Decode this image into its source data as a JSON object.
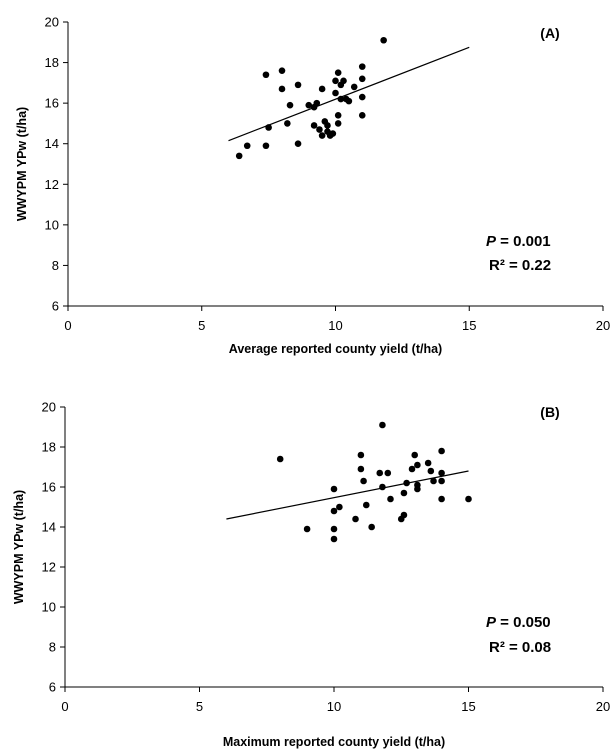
{
  "chart_data": [
    {
      "type": "scatter",
      "panel_label": "(A)",
      "xlabel": "Average reported county yield (t/ha)",
      "ylabel": "WWYPM YPw (t/ha)",
      "xlim": [
        0,
        20
      ],
      "ylim": [
        6,
        20
      ],
      "x_ticks": [
        "0",
        "5",
        "10",
        "15",
        "20"
      ],
      "y_ticks": [
        "6",
        "8",
        "10",
        "12",
        "14",
        "16",
        "18",
        "20"
      ],
      "grid": false,
      "trendline": {
        "x": [
          6,
          15
        ],
        "y": [
          14.15,
          18.75
        ]
      },
      "stats": {
        "p_symbol": "P",
        "p_text": " = 0.001",
        "r2_text": "R² = 0.22"
      },
      "points": [
        {
          "x": 6.4,
          "y": 13.4
        },
        {
          "x": 6.7,
          "y": 13.9
        },
        {
          "x": 7.4,
          "y": 13.9
        },
        {
          "x": 7.5,
          "y": 14.8
        },
        {
          "x": 7.4,
          "y": 17.4
        },
        {
          "x": 8.0,
          "y": 17.6
        },
        {
          "x": 8.0,
          "y": 16.7
        },
        {
          "x": 8.2,
          "y": 15.0
        },
        {
          "x": 8.3,
          "y": 15.9
        },
        {
          "x": 8.6,
          "y": 16.9
        },
        {
          "x": 8.6,
          "y": 14.0
        },
        {
          "x": 9.0,
          "y": 15.9
        },
        {
          "x": 9.2,
          "y": 15.8
        },
        {
          "x": 9.2,
          "y": 14.9
        },
        {
          "x": 9.3,
          "y": 16.0
        },
        {
          "x": 9.4,
          "y": 14.7
        },
        {
          "x": 9.5,
          "y": 14.4
        },
        {
          "x": 9.5,
          "y": 16.7
        },
        {
          "x": 9.6,
          "y": 15.1
        },
        {
          "x": 9.7,
          "y": 14.6
        },
        {
          "x": 9.7,
          "y": 14.9
        },
        {
          "x": 9.8,
          "y": 14.4
        },
        {
          "x": 9.9,
          "y": 14.5
        },
        {
          "x": 10.0,
          "y": 16.5
        },
        {
          "x": 10.0,
          "y": 17.1
        },
        {
          "x": 10.1,
          "y": 17.5
        },
        {
          "x": 10.1,
          "y": 15.0
        },
        {
          "x": 10.1,
          "y": 15.4
        },
        {
          "x": 10.2,
          "y": 16.9
        },
        {
          "x": 10.2,
          "y": 16.2
        },
        {
          "x": 10.3,
          "y": 17.1
        },
        {
          "x": 10.4,
          "y": 16.2
        },
        {
          "x": 10.5,
          "y": 16.1
        },
        {
          "x": 10.7,
          "y": 16.8
        },
        {
          "x": 11.0,
          "y": 17.8
        },
        {
          "x": 11.0,
          "y": 17.2
        },
        {
          "x": 11.0,
          "y": 16.3
        },
        {
          "x": 11.0,
          "y": 15.4
        },
        {
          "x": 11.8,
          "y": 19.1
        }
      ]
    },
    {
      "type": "scatter",
      "panel_label": "(B)",
      "xlabel": "Maximum reported county yield (t/ha)",
      "ylabel": "WWYPM YPw (t/ha)",
      "xlim": [
        0,
        20
      ],
      "ylim": [
        6,
        20
      ],
      "x_ticks": [
        "0",
        "5",
        "10",
        "15",
        "20"
      ],
      "y_ticks": [
        "6",
        "8",
        "10",
        "12",
        "14",
        "16",
        "18",
        "20"
      ],
      "grid": false,
      "trendline": {
        "x": [
          6,
          15
        ],
        "y": [
          14.4,
          16.8
        ]
      },
      "stats": {
        "p_symbol": "P",
        "p_text": " = 0.050",
        "r2_text": "R² = 0.08"
      },
      "points": [
        {
          "x": 8.0,
          "y": 17.4
        },
        {
          "x": 9.0,
          "y": 13.9
        },
        {
          "x": 10.0,
          "y": 15.9
        },
        {
          "x": 10.0,
          "y": 14.8
        },
        {
          "x": 10.0,
          "y": 13.9
        },
        {
          "x": 10.0,
          "y": 13.4
        },
        {
          "x": 10.2,
          "y": 15.0
        },
        {
          "x": 10.8,
          "y": 14.4
        },
        {
          "x": 11.0,
          "y": 17.6
        },
        {
          "x": 11.0,
          "y": 16.9
        },
        {
          "x": 11.1,
          "y": 16.3
        },
        {
          "x": 11.2,
          "y": 15.1
        },
        {
          "x": 11.4,
          "y": 14.0
        },
        {
          "x": 11.7,
          "y": 16.7
        },
        {
          "x": 11.8,
          "y": 16.0
        },
        {
          "x": 11.8,
          "y": 19.1
        },
        {
          "x": 12.0,
          "y": 16.7
        },
        {
          "x": 12.1,
          "y": 15.4
        },
        {
          "x": 12.5,
          "y": 14.4
        },
        {
          "x": 12.6,
          "y": 14.6
        },
        {
          "x": 12.6,
          "y": 15.7
        },
        {
          "x": 12.7,
          "y": 16.2
        },
        {
          "x": 12.9,
          "y": 16.9
        },
        {
          "x": 13.0,
          "y": 17.6
        },
        {
          "x": 13.1,
          "y": 17.1
        },
        {
          "x": 13.1,
          "y": 16.1
        },
        {
          "x": 13.1,
          "y": 15.9
        },
        {
          "x": 13.5,
          "y": 17.2
        },
        {
          "x": 13.6,
          "y": 16.8
        },
        {
          "x": 13.7,
          "y": 16.3
        },
        {
          "x": 14.0,
          "y": 17.8
        },
        {
          "x": 14.0,
          "y": 16.7
        },
        {
          "x": 14.0,
          "y": 16.3
        },
        {
          "x": 14.0,
          "y": 15.4
        },
        {
          "x": 15.0,
          "y": 15.4
        }
      ]
    }
  ]
}
